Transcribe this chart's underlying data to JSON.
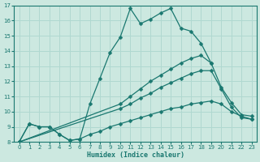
{
  "xlabel": "Humidex (Indice chaleur)",
  "xlim": [
    -0.5,
    23.5
  ],
  "ylim": [
    8,
    17
  ],
  "yticks": [
    8,
    9,
    10,
    11,
    12,
    13,
    14,
    15,
    16,
    17
  ],
  "xticks": [
    0,
    1,
    2,
    3,
    4,
    5,
    6,
    7,
    8,
    9,
    10,
    11,
    12,
    13,
    14,
    15,
    16,
    17,
    18,
    19,
    20,
    21,
    22,
    23
  ],
  "bg_color": "#cce8e0",
  "line_color": "#1a7870",
  "grid_color": "#b0d8d0",
  "lines": [
    {
      "x": [
        0,
        1,
        2,
        3,
        4,
        5,
        6,
        7,
        8,
        9,
        10,
        11,
        12,
        13,
        14,
        15,
        16,
        17,
        18,
        19
      ],
      "y": [
        8.0,
        9.2,
        9.0,
        9.0,
        8.5,
        8.1,
        8.2,
        10.5,
        12.2,
        13.9,
        14.9,
        16.8,
        15.8,
        16.1,
        16.5,
        16.8,
        15.5,
        15.3,
        14.5,
        13.2
      ]
    },
    {
      "x": [
        0,
        10,
        11,
        12,
        13,
        14,
        15,
        16,
        17,
        18,
        19,
        20,
        21,
        22,
        23
      ],
      "y": [
        8.0,
        10.5,
        11.0,
        11.5,
        12.0,
        12.4,
        12.8,
        13.2,
        13.5,
        13.7,
        13.2,
        11.6,
        10.6,
        9.8,
        9.7
      ]
    },
    {
      "x": [
        0,
        10,
        11,
        12,
        13,
        14,
        15,
        16,
        17,
        18,
        19,
        20,
        21,
        22,
        23
      ],
      "y": [
        8.0,
        10.2,
        10.5,
        10.9,
        11.2,
        11.6,
        11.9,
        12.2,
        12.5,
        12.7,
        12.7,
        11.5,
        10.3,
        9.6,
        9.5
      ]
    },
    {
      "x": [
        0,
        1,
        2,
        3,
        4,
        5,
        6,
        7,
        8,
        9,
        10,
        11,
        12,
        13,
        14,
        15,
        16,
        17,
        18,
        19,
        20,
        21,
        22,
        23
      ],
      "y": [
        8.0,
        9.2,
        9.0,
        9.0,
        8.5,
        8.1,
        8.2,
        8.5,
        8.7,
        9.0,
        9.2,
        9.4,
        9.6,
        9.8,
        10.0,
        10.2,
        10.3,
        10.5,
        10.6,
        10.7,
        10.5,
        10.0,
        9.7,
        9.5
      ]
    }
  ]
}
